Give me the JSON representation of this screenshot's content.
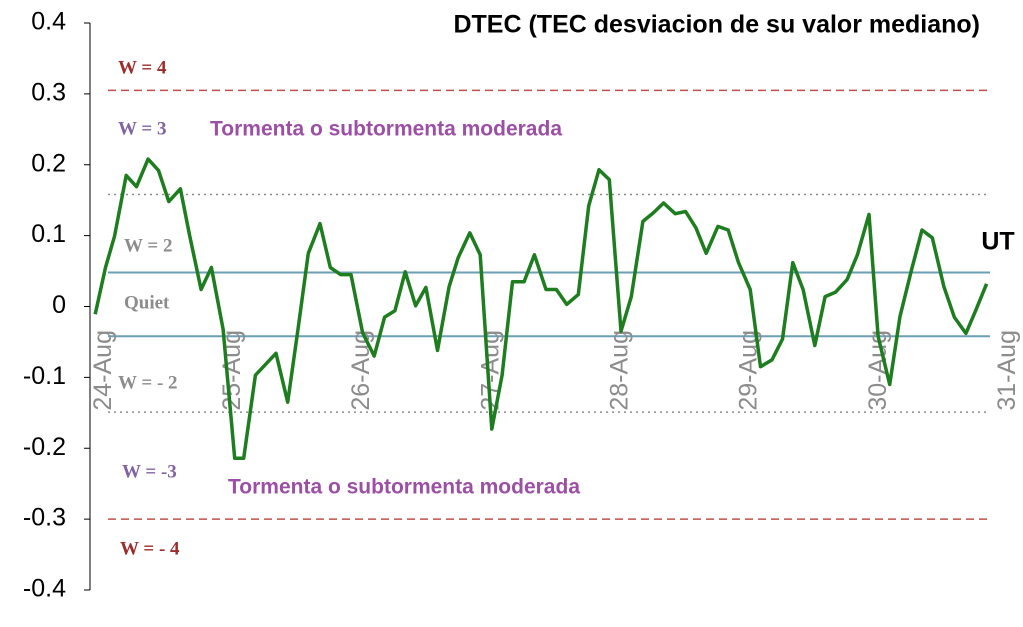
{
  "chart_data": {
    "type": "line",
    "title": "DTEC (TEC desviacion de su valor mediano)",
    "x_axis_label": "UT",
    "x": [
      0,
      0.08,
      0.15,
      0.24,
      0.32,
      0.41,
      0.49,
      0.57,
      0.66,
      0.73,
      0.82,
      0.9,
      0.99,
      1.08,
      1.15,
      1.24,
      1.4,
      1.49,
      1.57,
      1.65,
      1.74,
      1.82,
      1.9,
      1.98,
      2.07,
      2.16,
      2.24,
      2.32,
      2.4,
      2.48,
      2.56,
      2.65,
      2.74,
      2.81,
      2.9,
      2.98,
      3.07,
      3.15,
      3.23,
      3.32,
      3.4,
      3.49,
      3.57,
      3.65,
      3.74,
      3.82,
      3.9,
      3.98,
      4.07,
      4.15,
      4.24,
      4.32,
      4.4,
      4.49,
      4.57,
      4.65,
      4.73,
      4.82,
      4.9,
      4.98,
      5.07,
      5.15,
      5.24,
      5.32,
      5.4,
      5.48,
      5.57,
      5.65,
      5.73,
      5.82,
      5.9,
      5.99,
      6.06,
      6.15,
      6.23,
      6.32,
      6.4,
      6.48,
      6.57,
      6.65,
      6.74,
      6.81,
      6.9
    ],
    "series": [
      {
        "name": "DTEC",
        "color": "#1e7d1e",
        "values": [
          -0.011,
          0.055,
          0.099,
          0.185,
          0.169,
          0.208,
          0.192,
          0.148,
          0.166,
          0.101,
          0.024,
          0.055,
          -0.032,
          -0.214,
          -0.214,
          -0.097,
          -0.066,
          -0.135,
          -0.032,
          0.075,
          0.117,
          0.055,
          0.045,
          0.045,
          -0.037,
          -0.07,
          -0.015,
          -0.006,
          0.049,
          0.001,
          0.027,
          -0.062,
          0.028,
          0.069,
          0.104,
          0.073,
          -0.173,
          -0.097,
          0.035,
          0.035,
          0.073,
          0.024,
          0.024,
          0.003,
          0.017,
          0.142,
          0.193,
          0.179,
          -0.035,
          0.014,
          0.12,
          0.132,
          0.146,
          0.131,
          0.134,
          0.111,
          0.075,
          0.113,
          0.108,
          0.062,
          0.024,
          -0.085,
          -0.075,
          -0.046,
          0.062,
          0.024,
          -0.055,
          0.014,
          0.02,
          0.038,
          0.073,
          0.13,
          -0.042,
          -0.11,
          -0.014,
          0.052,
          0.108,
          0.097,
          0.028,
          -0.015,
          -0.038,
          -0.008,
          0.032
        ]
      }
    ],
    "xlim": [
      -0.04,
      7.12
    ],
    "xticks": [
      {
        "value": 0,
        "label": "24-Aug"
      },
      {
        "value": 1,
        "label": "25-Aug"
      },
      {
        "value": 2,
        "label": "26-Aug"
      },
      {
        "value": 3,
        "label": "27-Aug"
      },
      {
        "value": 4,
        "label": "28-Aug"
      },
      {
        "value": 5,
        "label": "29-Aug"
      },
      {
        "value": 6,
        "label": "30-Aug"
      },
      {
        "value": 7,
        "label": "31-Aug"
      }
    ],
    "ylim": [
      -0.4,
      0.4
    ],
    "yticks": [
      0.4,
      0.3,
      0.2,
      0.1,
      0,
      -0.1,
      -0.2,
      -0.3,
      -0.4
    ],
    "reference_lines": [
      {
        "value": 0.305,
        "color": "#c0504d",
        "style": "dashed"
      },
      {
        "value": 0.158,
        "color": "#8c8c8c",
        "style": "dotted"
      },
      {
        "value": 0.048,
        "color": "#6a9fb5",
        "style": "solid"
      },
      {
        "value": -0.042,
        "color": "#6a9fb5",
        "style": "solid"
      },
      {
        "value": -0.149,
        "color": "#8c8c8c",
        "style": "dotted"
      },
      {
        "value": -0.3,
        "color": "#c0504d",
        "style": "dashed"
      }
    ],
    "annotations": [
      {
        "text": "W = 4",
        "color": "#9b2d2d"
      },
      {
        "text": "W = 3",
        "color": "#8064a2"
      },
      {
        "text": "Tormenta o subtormenta moderada",
        "color": "#9b4fa5"
      },
      {
        "text": "W = 2",
        "color": "#8c8c8c"
      },
      {
        "text": "Quiet",
        "color": "#8c8c8c"
      },
      {
        "text": "W = - 2",
        "color": "#8c8c8c"
      },
      {
        "text": "W = -3",
        "color": "#8064a2"
      },
      {
        "text": "Tormenta o subtormenta moderada",
        "color": "#9b4fa5"
      },
      {
        "text": "W = - 4",
        "color": "#9b2d2d"
      }
    ]
  }
}
